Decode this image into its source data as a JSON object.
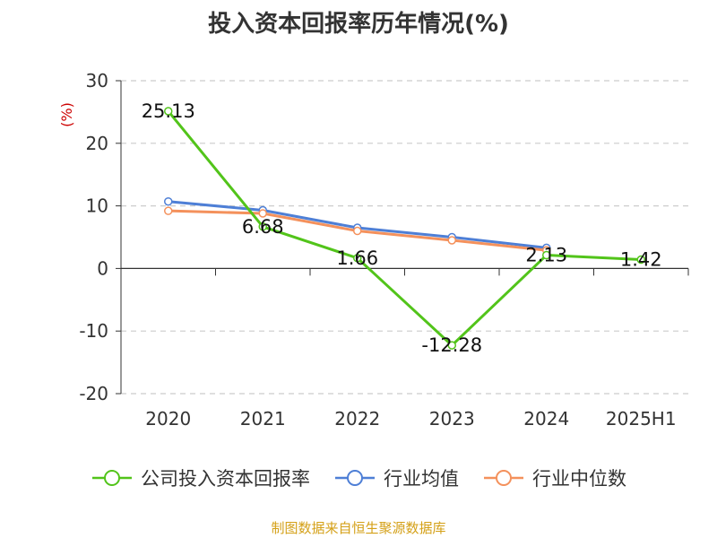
{
  "chart_data": {
    "type": "line",
    "title": "投入资本回报率历年情况(%)",
    "ylabel": "(%)",
    "categories": [
      "2020",
      "2021",
      "2022",
      "2023",
      "2024",
      "2025H1"
    ],
    "ylim": [
      -20,
      30
    ],
    "yticks": [
      30,
      20,
      10,
      0,
      -10,
      -20
    ],
    "grid": true,
    "legend_position": "bottom",
    "series": [
      {
        "name": "公司投入资本回报率",
        "color": "#52c41a",
        "values": [
          25.13,
          6.68,
          1.66,
          -12.28,
          2.13,
          1.42
        ],
        "labels": [
          "25.13",
          "6.68",
          "1.66",
          "-12.28",
          "2.13",
          "1.42"
        ]
      },
      {
        "name": "行业均值",
        "color": "#4e7fd6",
        "values": [
          10.7,
          9.3,
          6.5,
          5.0,
          3.3,
          null
        ]
      },
      {
        "name": "行业中位数",
        "color": "#f4915c",
        "values": [
          9.2,
          8.8,
          6.0,
          4.5,
          2.9,
          null
        ]
      }
    ]
  },
  "source": "制图数据来自恒生聚源数据库"
}
